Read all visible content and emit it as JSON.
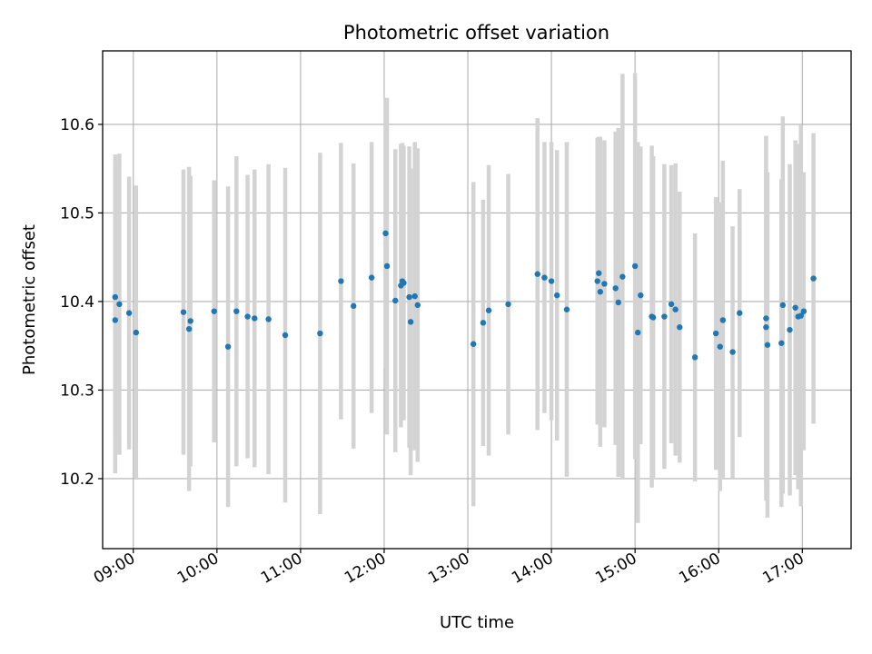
{
  "chart_data": {
    "type": "scatter",
    "title": "Photometric offset variation",
    "xlabel": "UTC time",
    "ylabel": "Photometric offset",
    "xlim": [
      "08:38",
      "17:35"
    ],
    "ylim": [
      10.121,
      10.683
    ],
    "grid": true,
    "x_ticks": [
      "09:00",
      "10:00",
      "11:00",
      "12:00",
      "13:00",
      "14:00",
      "15:00",
      "16:00",
      "17:00"
    ],
    "y_ticks": [
      "10.2",
      "10.3",
      "10.4",
      "10.5",
      "10.6"
    ],
    "point_color": "#1f77b4",
    "errorbar_color": "#d3d3d3",
    "series": [
      {
        "x": [
          "08:47",
          "08:47",
          "08:50",
          "08:57",
          "09:02",
          "09:36",
          "09:40",
          "09:41",
          "09:58",
          "10:08",
          "10:14",
          "10:22",
          "10:27",
          "10:37",
          "10:49",
          "11:14",
          "11:29",
          "11:38",
          "11:51",
          "12:01",
          "12:02",
          "12:08",
          "12:12",
          "12:13",
          "12:14",
          "12:18",
          "12:19",
          "12:22",
          "12:24",
          "13:04",
          "13:11",
          "13:15",
          "13:29",
          "13:50",
          "13:55",
          "14:00",
          "14:04",
          "14:11",
          "14:33",
          "14:34",
          "14:35",
          "14:38",
          "14:46",
          "14:48",
          "14:51",
          "15:00",
          "15:02",
          "15:04",
          "15:12",
          "15:13",
          "15:21",
          "15:26",
          "15:29",
          "15:32",
          "15:43",
          "15:58",
          "16:01",
          "16:03",
          "16:10",
          "16:15",
          "16:34",
          "16:34",
          "16:35",
          "16:45",
          "16:46",
          "16:51",
          "16:55",
          "16:57",
          "16:59",
          "17:01",
          "17:08"
        ],
        "y": [
          10.379,
          10.405,
          10.397,
          10.387,
          10.365,
          10.388,
          10.369,
          10.378,
          10.389,
          10.349,
          10.389,
          10.383,
          10.381,
          10.38,
          10.362,
          10.364,
          10.423,
          10.395,
          10.427,
          10.477,
          10.44,
          10.401,
          10.418,
          10.423,
          10.421,
          10.405,
          10.377,
          10.406,
          10.396,
          10.352,
          10.376,
          10.39,
          10.397,
          10.431,
          10.427,
          10.423,
          10.407,
          10.391,
          10.423,
          10.432,
          10.411,
          10.42,
          10.415,
          10.399,
          10.428,
          10.44,
          10.365,
          10.407,
          10.383,
          10.382,
          10.383,
          10.397,
          10.391,
          10.371,
          10.337,
          10.364,
          10.349,
          10.379,
          10.343,
          10.387,
          10.371,
          10.381,
          10.351,
          10.353,
          10.396,
          10.368,
          10.393,
          10.383,
          10.384,
          10.389,
          10.426
        ],
        "error": [
          0.173,
          0.161,
          0.17,
          0.154,
          0.166,
          0.161,
          0.183,
          0.164,
          0.148,
          0.181,
          0.175,
          0.16,
          0.168,
          0.175,
          0.189,
          0.204,
          0.156,
          0.161,
          0.153,
          0.152,
          0.19,
          0.171,
          0.16,
          0.156,
          0.155,
          0.17,
          0.173,
          0.174,
          0.177,
          0.183,
          0.139,
          0.164,
          0.147,
          0.176,
          0.153,
          0.157,
          0.164,
          0.189,
          0.162,
          0.154,
          0.175,
          0.162,
          0.177,
          0.197,
          0.229,
          0.218,
          0.215,
          0.168,
          0.193,
          0.182,
          0.172,
          0.157,
          0.165,
          0.153,
          0.14,
          0.154,
          0.163,
          0.18,
          0.142,
          0.14,
          0.178,
          0.206,
          0.195,
          0.185,
          0.213,
          0.187,
          0.189,
          0.195,
          0.215,
          0.157,
          0.164
        ]
      }
    ]
  }
}
